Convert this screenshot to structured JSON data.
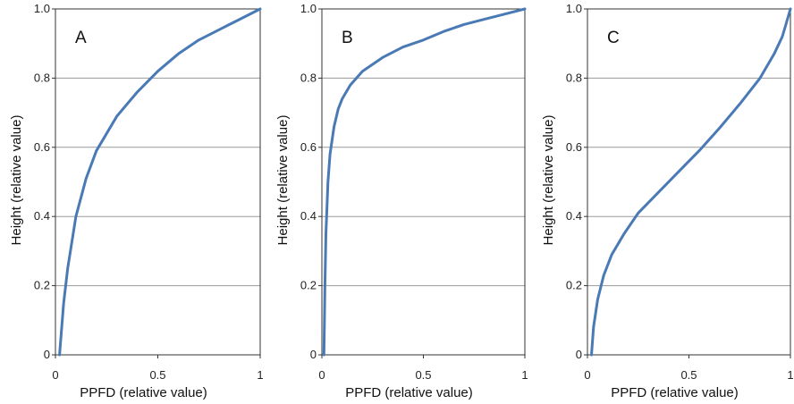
{
  "chart_data": [
    {
      "type": "line",
      "panel_label": "A",
      "xlabel": "PPFD (relative value)",
      "ylabel": "Height (relative value)",
      "xlim": [
        0,
        1
      ],
      "ylim": [
        0,
        1
      ],
      "x_ticks": [
        "0",
        "0.5",
        "1"
      ],
      "y_ticks": [
        "0",
        "0.2",
        "0.4",
        "0.6",
        "0.8",
        "1.0"
      ],
      "grid": "horizontal",
      "series": [
        {
          "color": "#4a7ab5",
          "x": [
            0.02,
            0.04,
            0.06,
            0.1,
            0.15,
            0.2,
            0.3,
            0.4,
            0.5,
            0.6,
            0.7,
            0.8,
            0.9,
            1.0
          ],
          "y": [
            0.0,
            0.15,
            0.25,
            0.4,
            0.51,
            0.59,
            0.69,
            0.76,
            0.82,
            0.87,
            0.91,
            0.94,
            0.97,
            1.0
          ]
        }
      ]
    },
    {
      "type": "line",
      "panel_label": "B",
      "xlabel": "PPFD (relative value)",
      "ylabel": "Height (relative value)",
      "xlim": [
        0,
        1
      ],
      "ylim": [
        0,
        1
      ],
      "x_ticks": [
        "0",
        "0.5",
        "1"
      ],
      "y_ticks": [
        "0",
        "0.2",
        "0.4",
        "0.6",
        "0.8",
        "1.0"
      ],
      "grid": "horizontal",
      "series": [
        {
          "color": "#4a7ab5",
          "x": [
            0.01,
            0.015,
            0.02,
            0.03,
            0.04,
            0.06,
            0.08,
            0.1,
            0.14,
            0.2,
            0.3,
            0.4,
            0.5,
            0.6,
            0.7,
            0.8,
            0.9,
            1.0
          ],
          "y": [
            0.0,
            0.2,
            0.35,
            0.5,
            0.58,
            0.66,
            0.71,
            0.74,
            0.78,
            0.82,
            0.86,
            0.89,
            0.91,
            0.935,
            0.955,
            0.97,
            0.985,
            1.0
          ]
        }
      ]
    },
    {
      "type": "line",
      "panel_label": "C",
      "xlabel": "PPFD (relative value)",
      "ylabel": "Height (relative value)",
      "xlim": [
        0,
        1
      ],
      "ylim": [
        0,
        1
      ],
      "x_ticks": [
        "0",
        "0.5",
        "1"
      ],
      "y_ticks": [
        "0",
        "0.2",
        "0.4",
        "0.6",
        "0.8",
        "1.0"
      ],
      "grid": "horizontal",
      "series": [
        {
          "color": "#4a7ab5",
          "x": [
            0.02,
            0.03,
            0.05,
            0.08,
            0.12,
            0.18,
            0.25,
            0.35,
            0.45,
            0.55,
            0.65,
            0.75,
            0.85,
            0.92,
            0.96,
            0.98,
            1.0
          ],
          "y": [
            0.0,
            0.08,
            0.16,
            0.23,
            0.29,
            0.35,
            0.41,
            0.47,
            0.53,
            0.59,
            0.655,
            0.725,
            0.8,
            0.87,
            0.92,
            0.96,
            1.0
          ]
        }
      ]
    }
  ]
}
